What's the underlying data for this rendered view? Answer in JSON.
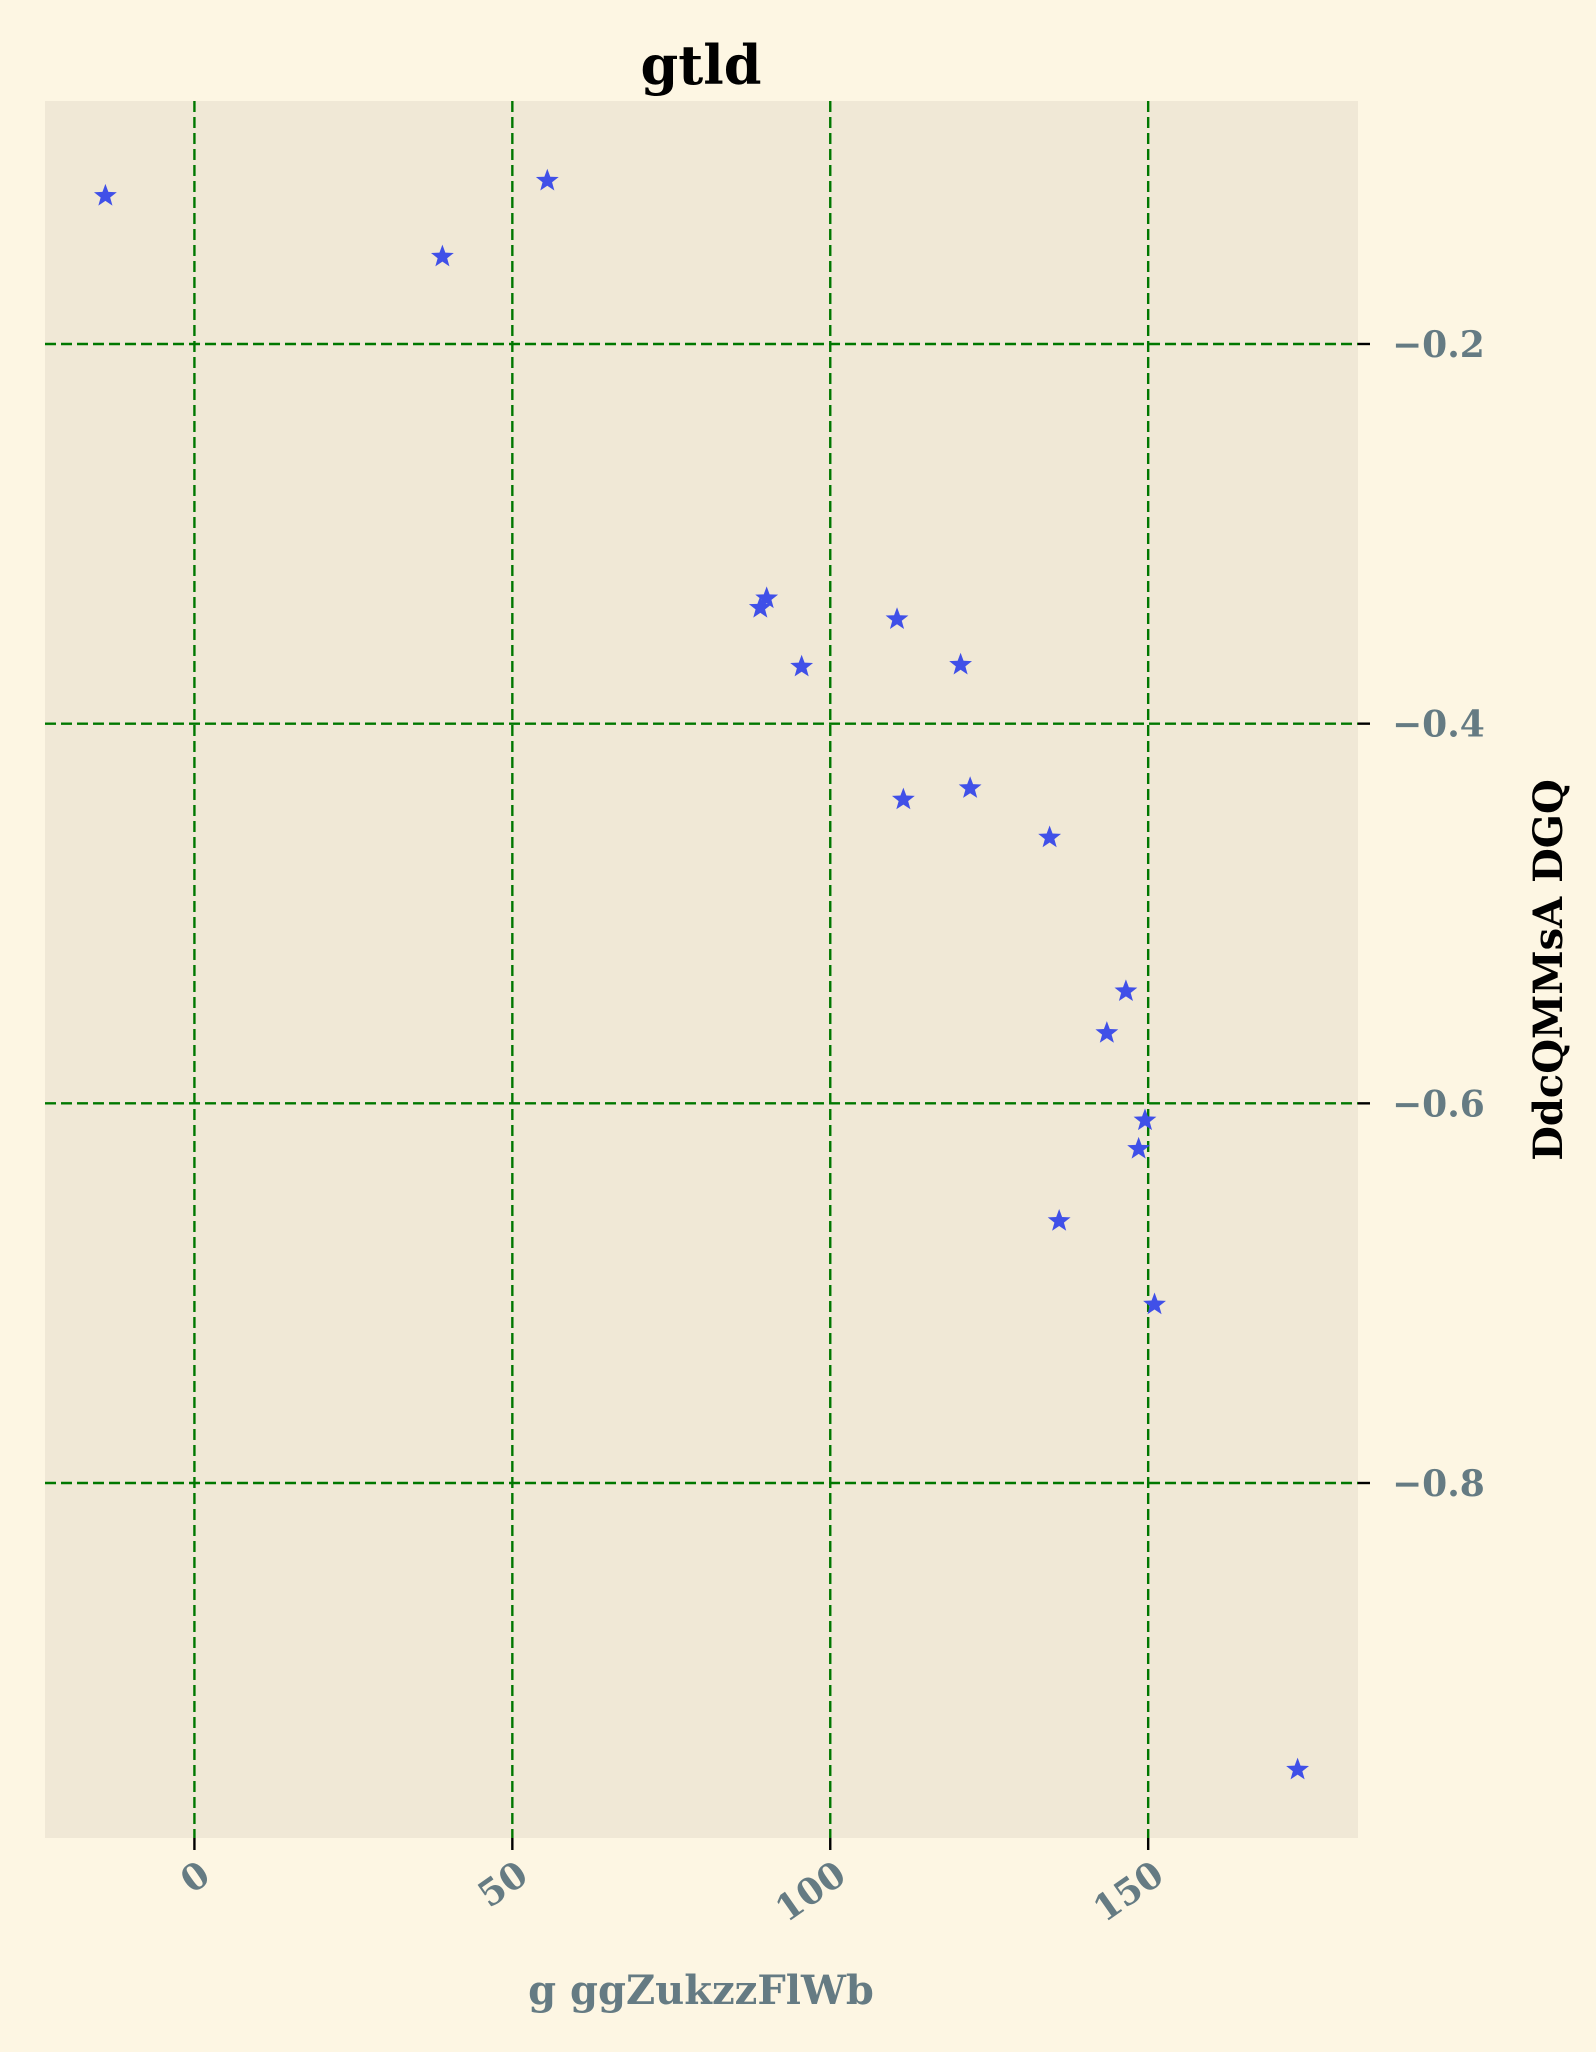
{
  "chart_data": {
    "type": "scatter",
    "title": "gtld",
    "xlabel": "g ggZukzzFlWb",
    "ylabel": "DdcQMMsA DGQ",
    "xlim": [
      -23.5,
      183
    ],
    "ylim": [
      -0.987,
      -0.072
    ],
    "x_ticks": [
      0,
      50,
      100,
      150
    ],
    "x_tick_labels": [
      "0",
      "50",
      "100",
      "150"
    ],
    "y_ticks": [
      -0.2,
      -0.4,
      -0.6,
      -0.8
    ],
    "y_tick_labels": [
      "−0.2",
      "−0.4",
      "−0.6",
      "−0.8"
    ],
    "y_axis_side": "right",
    "marker": "star",
    "grid": true,
    "colors": {
      "background": "#fdf6e3",
      "plot_area": "#f0e8d6",
      "grid": "#007700",
      "marker": "#4050e8",
      "tick_label": "#657b83"
    },
    "series": [
      {
        "x": [
          -14,
          39,
          55.5,
          89,
          90,
          95.5,
          110.5,
          111.5,
          120.5,
          122,
          134.5,
          136,
          143.5,
          146.5,
          148.5,
          149.5,
          151,
          173.5
        ],
        "y": [
          -0.122,
          -0.154,
          -0.114,
          -0.339,
          -0.334,
          -0.37,
          -0.345,
          -0.44,
          -0.369,
          -0.434,
          -0.46,
          -0.662,
          -0.563,
          -0.541,
          -0.624,
          -0.609,
          -0.706,
          -0.951
        ]
      }
    ]
  }
}
